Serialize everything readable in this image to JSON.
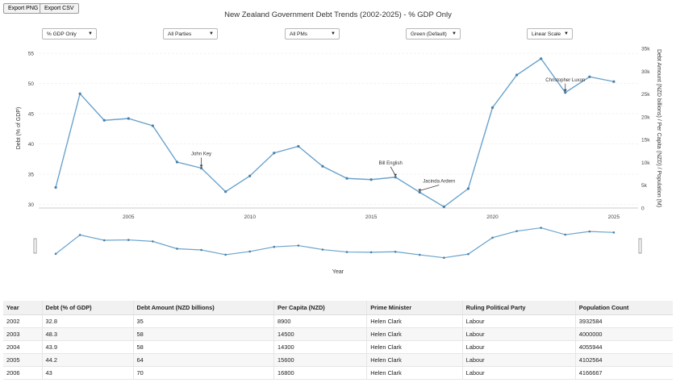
{
  "toolbar": {
    "export_png": "Export PNG",
    "export_csv": "Export CSV"
  },
  "filters": {
    "metric": "% GDP Only",
    "party": "All Parties",
    "pm": "All PMs",
    "color": "Green (Default)",
    "scale": "Linear Scale"
  },
  "colors": {
    "line": "#6aa3cc",
    "annotation": "#444444",
    "grid": "#e8e8e8"
  },
  "chart_data": {
    "type": "line",
    "title": "New Zealand Government Debt Trends (2002-2025) - % GDP Only",
    "xlabel": "Year",
    "ylabel": "Debt (% of GDP)",
    "y2label": "Debt Amount (NZD billions) / Per Capita (NZD) / Population (M)",
    "x_ticks": [
      "2005",
      "2010",
      "2015",
      "2020",
      "2025"
    ],
    "y_ticks": [
      "30",
      "35",
      "40",
      "45",
      "50",
      "55"
    ],
    "y2_ticks": [
      "0",
      "5k",
      "10k",
      "15k",
      "20k",
      "25k",
      "30k",
      "35k"
    ],
    "xlim": [
      2001.3,
      2026.0
    ],
    "ylim": [
      29.4,
      55.8
    ],
    "y2lim": [
      0,
      35000
    ],
    "series": [
      {
        "x": [
          2002,
          2003,
          2004,
          2005,
          2006,
          2007,
          2008,
          2009,
          2010,
          2011,
          2012,
          2013,
          2014,
          2015,
          2016,
          2017,
          2018,
          2019,
          2020,
          2021,
          2022,
          2023,
          2024,
          2025
        ],
        "values": [
          32.8,
          48.3,
          43.9,
          44.2,
          43,
          37,
          36,
          32.1,
          34.7,
          38.5,
          39.6,
          36.3,
          34.3,
          34.1,
          34.5,
          32,
          29.6,
          32.6,
          46,
          51.4,
          54.1,
          48.5,
          51.1,
          50.3
        ]
      }
    ],
    "annotations": [
      {
        "text": "John Key",
        "x": 2008,
        "y": 36
      },
      {
        "text": "Bill English",
        "x": 2016,
        "y": 34.5
      },
      {
        "text": "Jacinda Ardern",
        "x": 2017,
        "y": 32
      },
      {
        "text": "Christopher Luxon",
        "x": 2023,
        "y": 48.5
      }
    ],
    "grid": true
  },
  "table": {
    "headers": [
      "Year",
      "Debt (% of GDP)",
      "Debt Amount (NZD billions)",
      "Per Capita (NZD)",
      "Prime Minister",
      "Ruling Political Party",
      "Population Count"
    ],
    "rows": [
      [
        "2002",
        "32.8",
        "35",
        "8900",
        "Helen Clark",
        "Labour",
        "3932584"
      ],
      [
        "2003",
        "48.3",
        "58",
        "14500",
        "Helen Clark",
        "Labour",
        "4000000"
      ],
      [
        "2004",
        "43.9",
        "58",
        "14300",
        "Helen Clark",
        "Labour",
        "4055944"
      ],
      [
        "2005",
        "44.2",
        "64",
        "15600",
        "Helen Clark",
        "Labour",
        "4102564"
      ],
      [
        "2006",
        "43",
        "70",
        "16800",
        "Helen Clark",
        "Labour",
        "4166667"
      ]
    ]
  }
}
